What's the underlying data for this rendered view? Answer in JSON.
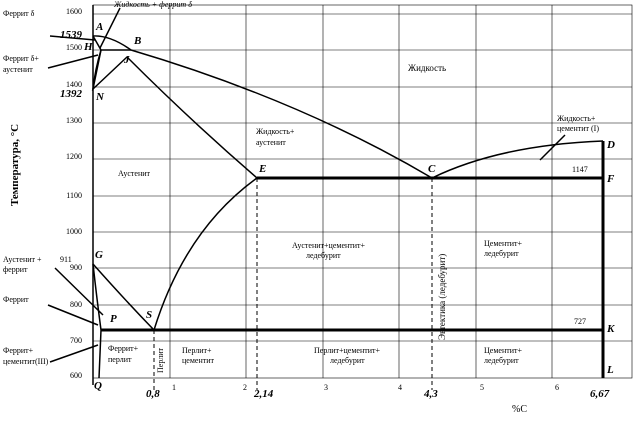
{
  "y_axis": {
    "title": "Температура, °C",
    "ticks": [
      "1600",
      "1500",
      "1400",
      "1300",
      "1200",
      "1100",
      "1000",
      "900",
      "800",
      "700",
      "600"
    ]
  },
  "x_axis": {
    "title": "%С",
    "ticks": [
      "1",
      "2",
      "3",
      "4",
      "5",
      "6"
    ],
    "marked": [
      "0,8",
      "2,14",
      "4,3",
      "6,67"
    ]
  },
  "points": {
    "A": "A",
    "H": "H",
    "B": "B",
    "J": "J",
    "N": "N",
    "E": "E",
    "C": "C",
    "D": "D",
    "F": "F",
    "G": "G",
    "P": "P",
    "S": "S",
    "K": "K",
    "Q": "Q",
    "L": "L"
  },
  "temperatures": {
    "t1539": "1539",
    "t1392": "1392",
    "t1147": "1147",
    "t727": "727",
    "t911": "911"
  },
  "left_labels": {
    "ferrite_delta": "Феррит δ",
    "ferrite_aust_1": "Феррит δ+",
    "ferrite_aust_2": "аустенит",
    "aust_ferrite_1": "Аустенит +",
    "aust_ferrite_2": "феррит",
    "ferrite": "Феррит",
    "ferrite_cem_1": "Феррит+",
    "ferrite_cem_2": "цементит(III)"
  },
  "regions": {
    "liq_ferrite": "Жидкость + феррит δ",
    "liquid": "Жидкость",
    "liq_cem_1": "Жидкость+",
    "liq_cem_2": "цементит (I)",
    "liq_aust_1": "Жидкость+",
    "liq_aust_2": "аустенит",
    "austenite": "Аустенит",
    "aust_led_1": "Аустенит+цементит+",
    "aust_led_2": "ледебурит",
    "cem_led_1": "Цементит+",
    "cem_led_2": "ледебурит",
    "eutectic": "Эвтектика (ледебурит)",
    "perlite": "Перлит",
    "ferr_perl_1": "Феррит+",
    "ferr_perl_2": "перлит",
    "perl_cem_1": "Перлит+",
    "perl_cem_2": "цементит",
    "perl_cem_led_1": "Перлит+цементит+",
    "perl_cem_led_2": "ледебурит",
    "cem_led_b_1": "Цементит+",
    "cem_led_b_2": "ледебурит"
  }
}
